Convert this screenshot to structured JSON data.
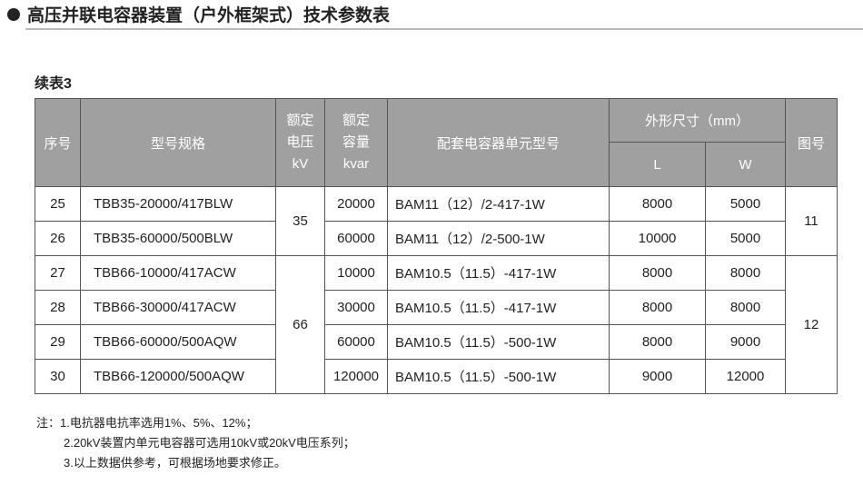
{
  "title": "高压并联电容器装置（户外框架式）技术参数表",
  "subtitle": "续表3",
  "headers": {
    "no": "序号",
    "model": "型号规格",
    "voltage": [
      "额定",
      "电压",
      "kV"
    ],
    "capacity": [
      "额定",
      "容量",
      "kvar"
    ],
    "unit": "配套电容器单元型号",
    "dims": "外形尺寸（mm）",
    "L": "L",
    "W": "W",
    "fig": "图号"
  },
  "rows": [
    {
      "no": "25",
      "model": "TBB35-20000/417BLW",
      "cap": "20000",
      "unit": "BAM11（12）/2-417-1W",
      "L": "8000",
      "W": "5000"
    },
    {
      "no": "26",
      "model": "TBB35-60000/500BLW",
      "cap": "60000",
      "unit": "BAM11（12）/2-500-1W",
      "L": "10000",
      "W": "5000"
    },
    {
      "no": "27",
      "model": "TBB66-10000/417ACW",
      "cap": "10000",
      "unit": "BAM10.5（11.5）-417-1W",
      "L": "8000",
      "W": "8000"
    },
    {
      "no": "28",
      "model": "TBB66-30000/417ACW",
      "cap": "30000",
      "unit": "BAM10.5（11.5）-417-1W",
      "L": "8000",
      "W": "8000"
    },
    {
      "no": "29",
      "model": "TBB66-60000/500AQW",
      "cap": "60000",
      "unit": "BAM10.5（11.5）-500-1W",
      "L": "8000",
      "W": "9000"
    },
    {
      "no": "30",
      "model": "TBB66-120000/500AQW",
      "cap": "120000",
      "unit": "BAM10.5（11.5）-500-1W",
      "L": "9000",
      "W": "12000"
    }
  ],
  "groups": {
    "v1": "35",
    "v2": "66",
    "f1": "11",
    "f2": "12"
  },
  "notes": [
    "注：1.电抗器电抗率选用1%、5%、12%；",
    "2.20kV装置内单元电容器可选用10kV或20kV电压系列；",
    "3.以上数据供参考，可根据场地要求修正。"
  ]
}
